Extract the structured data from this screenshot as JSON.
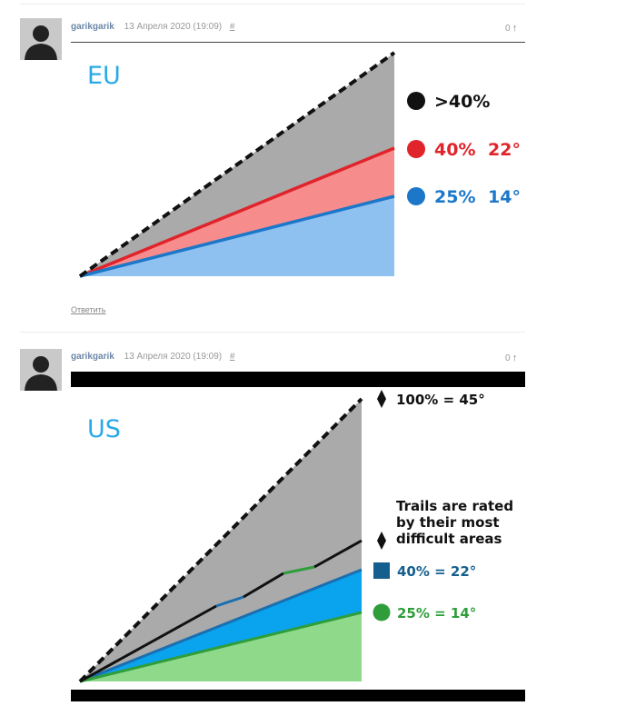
{
  "comments": [
    {
      "author": "garikgarik",
      "date": "13 Апреля 2020 (19:09)",
      "permalink": "#",
      "votes": "0",
      "vote_icon": "arrow-up-icon",
      "reply_label": "Ответить",
      "image": {
        "title": "EU",
        "legend": [
          {
            "dot": ">40%",
            "label": "",
            "color": "#111111"
          },
          {
            "dot": "40%",
            "label": "22°",
            "color": "#e0242b"
          },
          {
            "dot": "25%",
            "label": "14°",
            "color": "#1c77c9"
          }
        ]
      }
    },
    {
      "author": "garikgarik",
      "date": "13 Апреля 2020 (19:09)",
      "permalink": "#",
      "votes": "0",
      "vote_icon": "arrow-up-icon",
      "image": {
        "title": "US",
        "top_label": "100% = 45°",
        "note_lines": [
          "Trails are rated",
          "by their most",
          "difficult areas"
        ],
        "legend": [
          {
            "label": "40% = 22°",
            "shape": "square",
            "color": "#155f8f"
          },
          {
            "label": "25% = 14°",
            "shape": "circle",
            "color": "#2f9e3a"
          }
        ]
      }
    }
  ],
  "colors": {
    "title_blue": "#29a9e8",
    "grey_area": "#aaaaaa",
    "eu_red_area": "#f78c8c",
    "eu_blue_area": "#8ec0f0",
    "us_blue_area": "#0aa3ee",
    "us_green_area": "#8fd98a"
  }
}
